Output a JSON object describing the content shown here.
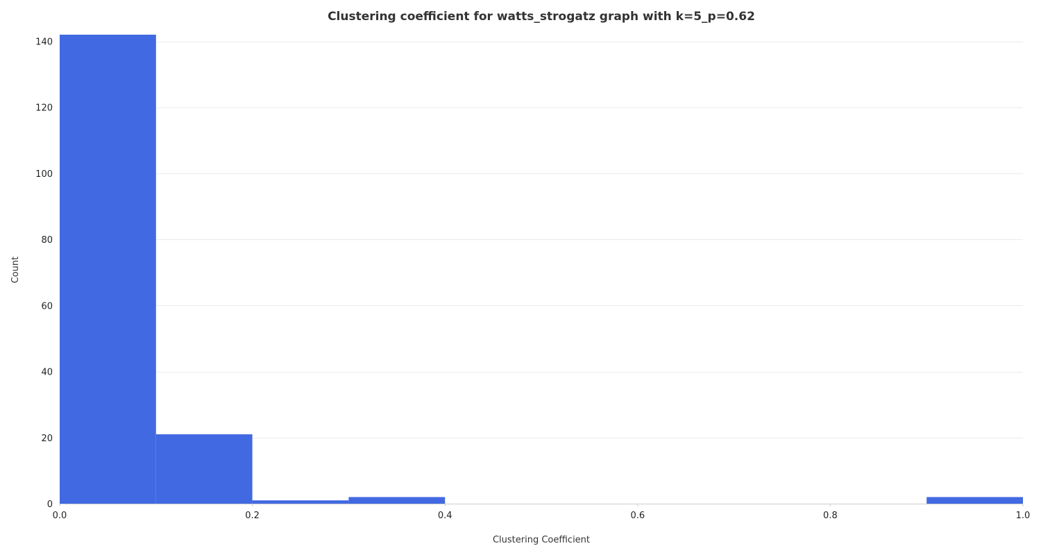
{
  "chart_data": {
    "type": "bar",
    "title": "Clustering coefficient for watts_strogatz graph with k=5_p=0.62",
    "xlabel": "Clustering Coefficient",
    "ylabel": "Count",
    "xlim": [
      0.0,
      1.0
    ],
    "ylim": [
      0,
      142
    ],
    "grid": true,
    "bin_width": 0.1,
    "bins": [
      {
        "start": 0.0,
        "end": 0.1,
        "count": 142
      },
      {
        "start": 0.1,
        "end": 0.2,
        "count": 21
      },
      {
        "start": 0.2,
        "end": 0.3,
        "count": 1
      },
      {
        "start": 0.3,
        "end": 0.4,
        "count": 2
      },
      {
        "start": 0.4,
        "end": 0.5,
        "count": 0
      },
      {
        "start": 0.5,
        "end": 0.6,
        "count": 0
      },
      {
        "start": 0.6,
        "end": 0.7,
        "count": 0
      },
      {
        "start": 0.7,
        "end": 0.8,
        "count": 0
      },
      {
        "start": 0.8,
        "end": 0.9,
        "count": 0
      },
      {
        "start": 0.9,
        "end": 1.0,
        "count": 2
      }
    ],
    "x_ticks": [
      0.0,
      0.2,
      0.4,
      0.6,
      0.8,
      1.0
    ],
    "x_tick_labels": [
      "0.0",
      "0.2",
      "0.4",
      "0.6",
      "0.8",
      "1.0"
    ],
    "y_ticks": [
      0,
      20,
      40,
      60,
      80,
      100,
      120,
      140
    ],
    "y_tick_labels": [
      "0",
      "20",
      "40",
      "60",
      "80",
      "100",
      "120",
      "140"
    ],
    "bar_color": "#4169e1"
  }
}
